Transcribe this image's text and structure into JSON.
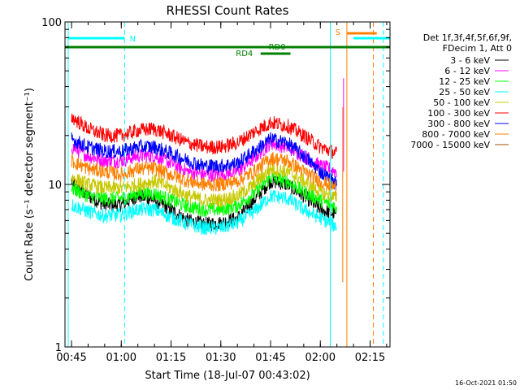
{
  "chart_data": {
    "type": "line",
    "title": "RHESSI Count Rates",
    "xlabel": "Start Time (18-Jul-07 00:43:02)",
    "ylabel": "Count Rate (s⁻¹ detector segment⁻¹)",
    "y_scale": "log",
    "ylim": [
      1,
      100
    ],
    "xlim": [
      "00:43",
      "02:21"
    ],
    "x_ticks": [
      "00:45",
      "01:00",
      "01:15",
      "01:30",
      "01:45",
      "02:00",
      "02:15"
    ],
    "y_ticks": [
      "1",
      "10",
      "100"
    ],
    "grid": false,
    "legend_position": "right",
    "legend_header": [
      "Det 1f,3f,4f,5f,6f,9f,",
      "FDecim 1, Att 0"
    ],
    "series": [
      {
        "name": "3 - 6 keV",
        "color": "#000000",
        "points": [
          [
            "00:45",
            10.5
          ],
          [
            "00:50",
            8.5
          ],
          [
            "00:55",
            7.5
          ],
          [
            "01:00",
            7.5
          ],
          [
            "01:05",
            8.5
          ],
          [
            "01:10",
            8.0
          ],
          [
            "01:15",
            7.0
          ],
          [
            "01:20",
            6.0
          ],
          [
            "01:25",
            5.7
          ],
          [
            "01:30",
            5.8
          ],
          [
            "01:35",
            6.2
          ],
          [
            "01:40",
            8.0
          ],
          [
            "01:45",
            10.5
          ],
          [
            "01:50",
            10.0
          ],
          [
            "01:55",
            8.5
          ],
          [
            "02:00",
            7.0
          ],
          [
            "02:05",
            6.5
          ]
        ]
      },
      {
        "name": "6 - 12 keV",
        "color": "#ff00ff",
        "points": [
          [
            "00:45",
            17
          ],
          [
            "00:50",
            15
          ],
          [
            "00:55",
            14
          ],
          [
            "01:00",
            14
          ],
          [
            "01:05",
            15
          ],
          [
            "01:10",
            15
          ],
          [
            "01:15",
            13.5
          ],
          [
            "01:20",
            12
          ],
          [
            "01:25",
            11.5
          ],
          [
            "01:30",
            11.5
          ],
          [
            "01:35",
            12
          ],
          [
            "01:40",
            14.5
          ],
          [
            "01:45",
            18
          ],
          [
            "01:50",
            17
          ],
          [
            "01:55",
            15
          ],
          [
            "02:00",
            13
          ],
          [
            "02:05",
            12
          ]
        ]
      },
      {
        "name": "12 - 25 keV",
        "color": "#00ff00",
        "points": [
          [
            "00:45",
            9.5
          ],
          [
            "00:50",
            8.5
          ],
          [
            "00:55",
            8.2
          ],
          [
            "01:00",
            8.2
          ],
          [
            "01:05",
            8.8
          ],
          [
            "01:10",
            8.8
          ],
          [
            "01:15",
            8.0
          ],
          [
            "01:20",
            7.3
          ],
          [
            "01:25",
            7.0
          ],
          [
            "01:30",
            7.0
          ],
          [
            "01:35",
            7.4
          ],
          [
            "01:40",
            8.8
          ],
          [
            "01:45",
            11
          ],
          [
            "01:50",
            10.5
          ],
          [
            "01:55",
            9.0
          ],
          [
            "02:00",
            8.0
          ],
          [
            "02:05",
            7.2
          ]
        ]
      },
      {
        "name": "25 - 50 keV",
        "color": "#00ffff",
        "points": [
          [
            "00:45",
            7.5
          ],
          [
            "00:50",
            6.8
          ],
          [
            "00:55",
            6.4
          ],
          [
            "01:00",
            6.5
          ],
          [
            "01:05",
            7.0
          ],
          [
            "01:10",
            7.0
          ],
          [
            "01:15",
            6.3
          ],
          [
            "01:20",
            5.7
          ],
          [
            "01:25",
            5.4
          ],
          [
            "01:30",
            5.4
          ],
          [
            "01:35",
            5.8
          ],
          [
            "01:40",
            6.8
          ],
          [
            "01:45",
            8.5
          ],
          [
            "01:50",
            8.2
          ],
          [
            "01:55",
            7.0
          ],
          [
            "02:00",
            6.2
          ],
          [
            "02:05",
            5.5
          ]
        ]
      },
      {
        "name": "50 - 100 keV",
        "color": "#c8c800",
        "points": [
          [
            "00:45",
            11
          ],
          [
            "00:50",
            10
          ],
          [
            "00:55",
            9.5
          ],
          [
            "01:00",
            9.5
          ],
          [
            "01:05",
            10
          ],
          [
            "01:10",
            10.5
          ],
          [
            "01:15",
            9.5
          ],
          [
            "01:20",
            8.5
          ],
          [
            "01:25",
            8.0
          ],
          [
            "01:30",
            8.0
          ],
          [
            "01:35",
            8.5
          ],
          [
            "01:40",
            10
          ],
          [
            "01:45",
            12.5
          ],
          [
            "01:50",
            12
          ],
          [
            "01:55",
            10.5
          ],
          [
            "02:00",
            9.0
          ],
          [
            "02:05",
            8.2
          ]
        ]
      },
      {
        "name": "100 - 300 keV",
        "color": "#ff0000",
        "points": [
          [
            "00:45",
            26
          ],
          [
            "00:50",
            22
          ],
          [
            "00:55",
            20
          ],
          [
            "01:00",
            20
          ],
          [
            "01:05",
            21.5
          ],
          [
            "01:10",
            22
          ],
          [
            "01:15",
            20
          ],
          [
            "01:20",
            18
          ],
          [
            "01:25",
            17
          ],
          [
            "01:30",
            17
          ],
          [
            "01:35",
            18
          ],
          [
            "01:40",
            21
          ],
          [
            "01:45",
            24
          ],
          [
            "01:50",
            23
          ],
          [
            "01:55",
            20
          ],
          [
            "02:00",
            17
          ],
          [
            "02:05",
            15.5
          ]
        ]
      },
      {
        "name": "300 - 800 keV",
        "color": "#0000ff",
        "points": [
          [
            "00:45",
            19
          ],
          [
            "00:50",
            17
          ],
          [
            "00:55",
            16
          ],
          [
            "01:00",
            16
          ],
          [
            "01:05",
            17
          ],
          [
            "01:10",
            17
          ],
          [
            "01:15",
            15.5
          ],
          [
            "01:20",
            14
          ],
          [
            "01:25",
            13
          ],
          [
            "01:30",
            13
          ],
          [
            "01:35",
            13.5
          ],
          [
            "01:40",
            16
          ],
          [
            "01:45",
            19
          ],
          [
            "01:50",
            18
          ],
          [
            "01:55",
            15
          ],
          [
            "02:00",
            12
          ],
          [
            "02:05",
            10
          ]
        ]
      },
      {
        "name": "800 - 7000 keV",
        "color": "#ff8000",
        "points": [
          [
            "00:45",
            14
          ],
          [
            "00:50",
            12.5
          ],
          [
            "00:55",
            12
          ],
          [
            "01:00",
            11.5
          ],
          [
            "01:05",
            12.5
          ],
          [
            "01:10",
            12.5
          ],
          [
            "01:15",
            11.5
          ],
          [
            "01:20",
            10.5
          ],
          [
            "01:25",
            10
          ],
          [
            "01:30",
            10
          ],
          [
            "01:35",
            10.5
          ],
          [
            "01:40",
            12
          ],
          [
            "01:45",
            14.5
          ],
          [
            "01:50",
            14
          ],
          [
            "01:55",
            12
          ],
          [
            "02:00",
            10.5
          ],
          [
            "02:05",
            9.5
          ]
        ]
      },
      {
        "name": "7000 - 15000 keV",
        "color": "#a05000",
        "points": []
      }
    ],
    "annotations": {
      "N": {
        "label": "N",
        "from": "00:44",
        "to": "01:01",
        "color": "#00ffff"
      },
      "RD0": {
        "label": "RD0",
        "from": "00:43",
        "to": "02:21",
        "color": "#008000"
      },
      "RD4": {
        "label": "RD4",
        "from": "01:42",
        "to": "01:51",
        "color": "#008000"
      },
      "S": {
        "label": "S",
        "from": "02:08",
        "to": "02:17",
        "color": "#ff8000"
      },
      "N2": {
        "from": "02:10",
        "to": "02:21",
        "color": "#00ffff"
      }
    },
    "vertical_lines": [
      {
        "time": "00:44",
        "color": "#00ffff",
        "style": "solid"
      },
      {
        "time": "01:01",
        "color": "#00ffff",
        "style": "dashed"
      },
      {
        "time": "02:03",
        "color": "#00ffff",
        "style": "solid"
      },
      {
        "time": "02:08",
        "color": "#ff8000",
        "style": "solid"
      },
      {
        "time": "02:16",
        "color": "#ff8000",
        "style": "dashed"
      },
      {
        "time": "02:19",
        "color": "#00ffff",
        "style": "dashed"
      }
    ],
    "timestamp": "16-Oct-2021 01:50"
  }
}
